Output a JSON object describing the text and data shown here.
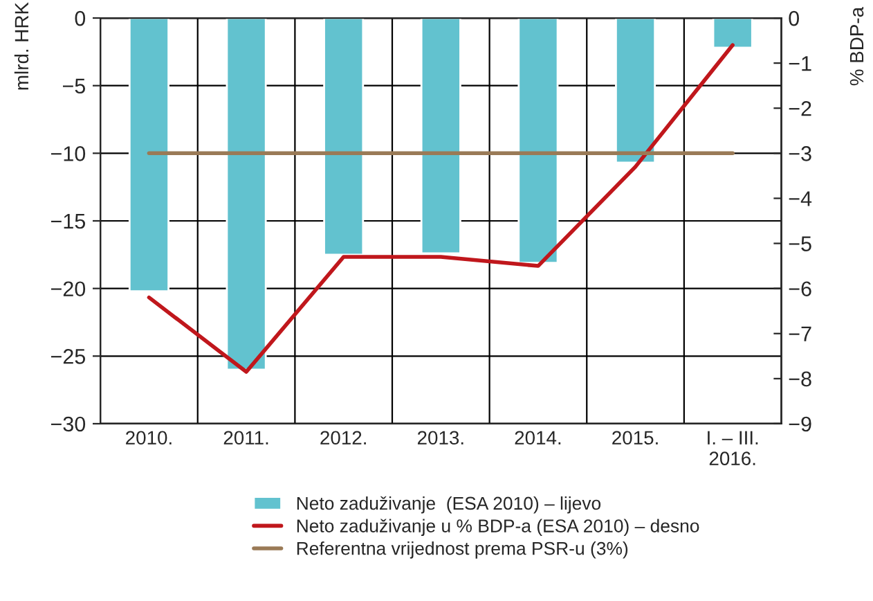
{
  "chart_data": {
    "type": "bar",
    "ylabel": "mlrd. HRK",
    "y2label": "% BDP-a",
    "categories": [
      "2010.",
      "2011.",
      "2012.",
      "2013.",
      "2014.",
      "2015.",
      "I. – III.\n2016."
    ],
    "series": [
      {
        "name": "Neto zaduživanje  (ESA 2010) – lijevo",
        "color": "#62c2cf",
        "values": [
          -20.2,
          -26.0,
          -17.5,
          -17.4,
          -18.1,
          -10.7,
          -2.2
        ]
      },
      {
        "name": "Neto zaduživanje u % BDP-a (ESA 2010) – desno",
        "type": "line",
        "axis": "y2",
        "color": "#c0171c",
        "values": [
          -6.2,
          -7.85,
          -5.3,
          -5.3,
          -5.5,
          -3.3,
          -0.6
        ]
      },
      {
        "name": "Referentna vrijednost prema PSR-u (3%)",
        "type": "line",
        "axis": "y2",
        "color": "#9a7a56",
        "values": [
          -3,
          -3,
          -3,
          -3,
          -3,
          -3,
          -3
        ]
      }
    ],
    "ylim": [
      -30,
      0
    ],
    "yticks": [
      {
        "value": 0,
        "label": "0"
      },
      {
        "value": -5,
        "label": "−5"
      },
      {
        "value": -10,
        "label": "−10"
      },
      {
        "value": -15,
        "label": "−15"
      },
      {
        "value": -20,
        "label": "−20"
      },
      {
        "value": -25,
        "label": "−25"
      },
      {
        "value": -30,
        "label": "−30"
      }
    ],
    "y2lim": [
      -9,
      0
    ],
    "y2ticks": [
      {
        "value": 0,
        "label": "0"
      },
      {
        "value": -1,
        "label": "−1"
      },
      {
        "value": -2,
        "label": "−2"
      },
      {
        "value": -3,
        "label": "−3"
      },
      {
        "value": -4,
        "label": "−4"
      },
      {
        "value": -5,
        "label": "−5"
      },
      {
        "value": -6,
        "label": "−6"
      },
      {
        "value": -7,
        "label": "−7"
      },
      {
        "value": -8,
        "label": "−8"
      },
      {
        "value": -9,
        "label": "−9"
      }
    ],
    "grid": true,
    "legend": "bottom",
    "marker": "none",
    "line_style": "solid"
  }
}
